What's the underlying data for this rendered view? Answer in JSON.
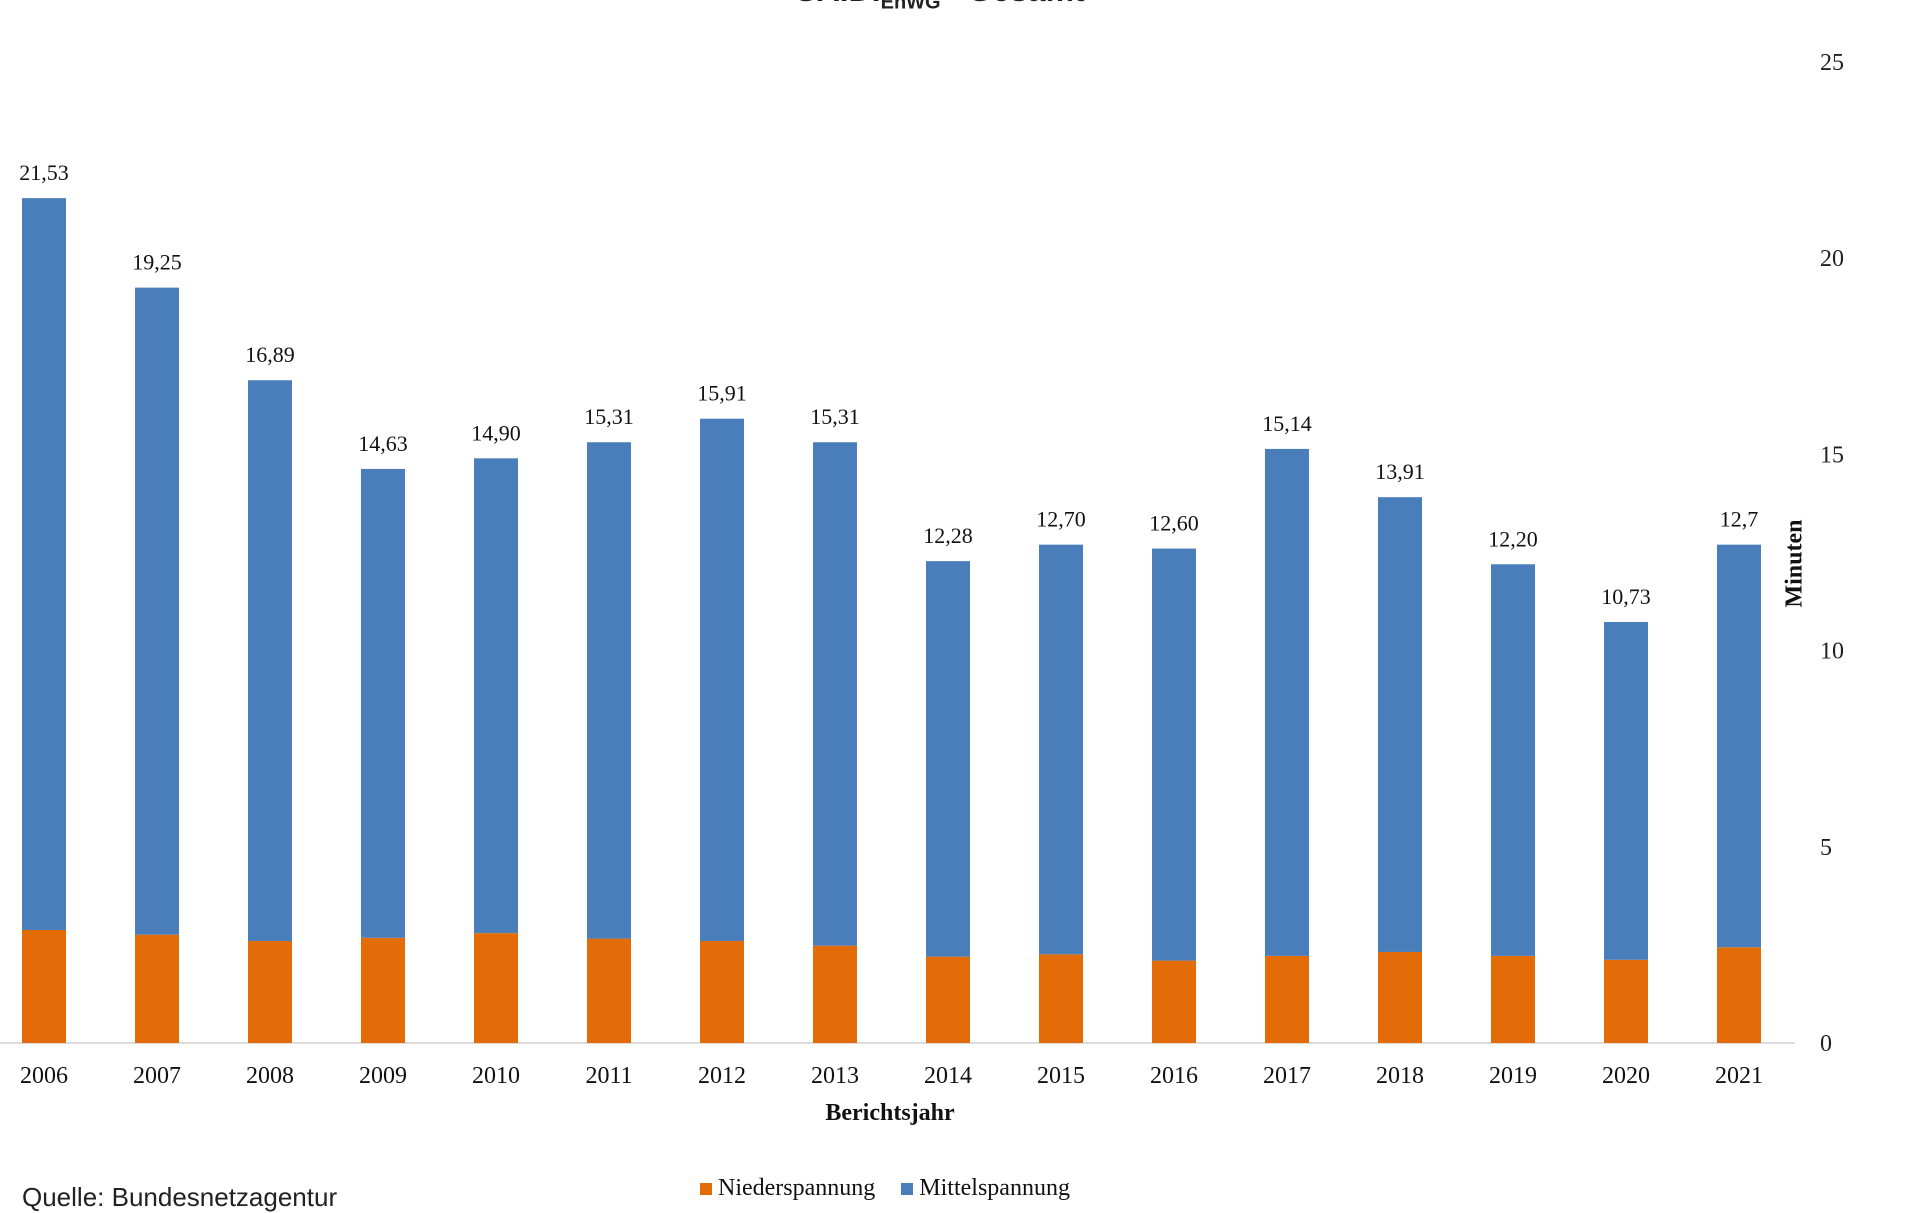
{
  "chart_data": {
    "type": "bar",
    "stacked": true,
    "title_main": "SAIDI",
    "title_sub": "EnWG",
    "title_rest": "– Gesamt",
    "xlabel": "Berichtsjahr",
    "ylabel": "Minuten",
    "ylim": [
      0,
      25
    ],
    "y_ticks": [
      "0",
      "5",
      "10",
      "15",
      "20",
      "25"
    ],
    "y_axis_position": "right",
    "categories": [
      "2006",
      "2007",
      "2008",
      "2009",
      "2010",
      "2011",
      "2012",
      "2013",
      "2014",
      "2015",
      "2016",
      "2017",
      "2018",
      "2019",
      "2020",
      "2021"
    ],
    "series": [
      {
        "name": "Niederspannung",
        "color": "#e36c09",
        "values": [
          2.88,
          2.76,
          2.6,
          2.68,
          2.8,
          2.66,
          2.6,
          2.48,
          2.2,
          2.26,
          2.1,
          2.22,
          2.32,
          2.22,
          2.12,
          2.44
        ]
      },
      {
        "name": "Mittelspannung",
        "color": "#4a7ebb",
        "values": [
          18.65,
          16.49,
          14.29,
          11.95,
          12.1,
          12.65,
          13.31,
          12.83,
          10.08,
          10.44,
          10.5,
          12.92,
          11.59,
          9.98,
          8.61,
          10.26
        ]
      }
    ],
    "totals": [
      21.53,
      19.25,
      16.89,
      14.63,
      14.9,
      15.31,
      15.91,
      15.31,
      12.28,
      12.7,
      12.6,
      15.14,
      13.91,
      12.2,
      10.73,
      12.7
    ],
    "total_labels": [
      "21,53",
      "19,25",
      "16,89",
      "14,63",
      "14,90",
      "15,31",
      "15,91",
      "15,31",
      "12,28",
      "12,70",
      "12,60",
      "15,14",
      "13,91",
      "12,20",
      "10,73",
      "12,7"
    ],
    "legend_position": "bottom",
    "grid": false
  },
  "source_note": "Quelle: Bundesnetzagentur"
}
